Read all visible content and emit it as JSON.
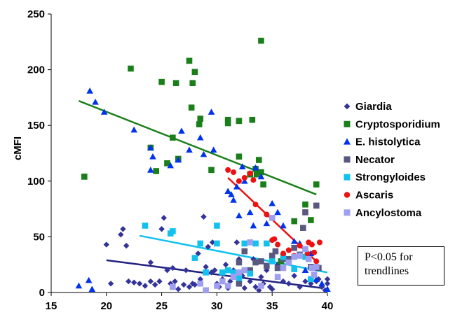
{
  "chart_data": {
    "type": "scatter",
    "title": "",
    "xlabel": "",
    "ylabel": "cMFI",
    "xlim": [
      15,
      40
    ],
    "ylim": [
      0,
      250
    ],
    "xticks": [
      15,
      20,
      25,
      30,
      35,
      40
    ],
    "yticks": [
      0,
      50,
      100,
      150,
      200,
      250
    ],
    "grid": false,
    "legend_position": "right",
    "series": [
      {
        "name": "Giardia",
        "marker": "diamond",
        "color": "#333399",
        "points": [
          [
            20,
            43
          ],
          [
            20.4,
            8
          ],
          [
            21.3,
            52
          ],
          [
            21.5,
            57
          ],
          [
            21.8,
            42
          ],
          [
            22,
            10
          ],
          [
            22.5,
            9
          ],
          [
            23,
            8
          ],
          [
            23.5,
            6
          ],
          [
            24,
            10
          ],
          [
            24,
            27
          ],
          [
            24.4,
            7
          ],
          [
            24.8,
            10
          ],
          [
            25,
            57
          ],
          [
            25.2,
            67
          ],
          [
            25.5,
            20
          ],
          [
            25.8,
            8
          ],
          [
            26,
            22
          ],
          [
            26.2,
            10
          ],
          [
            26.5,
            3
          ],
          [
            27,
            7
          ],
          [
            27.2,
            20
          ],
          [
            27.5,
            5
          ],
          [
            27.8,
            8
          ],
          [
            28,
            7
          ],
          [
            28.3,
            35
          ],
          [
            28.5,
            12
          ],
          [
            28.8,
            68
          ],
          [
            29,
            23
          ],
          [
            29.2,
            41
          ],
          [
            29.5,
            18
          ],
          [
            29.6,
            45
          ],
          [
            29.8,
            20
          ],
          [
            30,
            8
          ],
          [
            30.2,
            5
          ],
          [
            30.5,
            12
          ],
          [
            30.8,
            25
          ],
          [
            31,
            4
          ],
          [
            31.2,
            10
          ],
          [
            31.5,
            20
          ],
          [
            31.8,
            45
          ],
          [
            32,
            30
          ],
          [
            32,
            8
          ],
          [
            32.3,
            15
          ],
          [
            32.5,
            4
          ],
          [
            32.8,
            20
          ],
          [
            33,
            10
          ],
          [
            33.3,
            30
          ],
          [
            33.5,
            5
          ],
          [
            33.8,
            2
          ],
          [
            34,
            14
          ],
          [
            34.2,
            8
          ],
          [
            34.5,
            20
          ],
          [
            34.8,
            5
          ],
          [
            35,
            3
          ],
          [
            35.5,
            25
          ],
          [
            36,
            10
          ],
          [
            36.5,
            8
          ],
          [
            37,
            15
          ],
          [
            37.5,
            5
          ],
          [
            38,
            10
          ],
          [
            38.5,
            8
          ],
          [
            39,
            10
          ],
          [
            39.2,
            12
          ],
          [
            39.5,
            5
          ],
          [
            39.8,
            2
          ],
          [
            40,
            8
          ],
          [
            40,
            12
          ]
        ]
      },
      {
        "name": "Cryptosporidium",
        "marker": "square",
        "color": "#1a7f1a",
        "points": [
          [
            18,
            104
          ],
          [
            22.2,
            201
          ],
          [
            24,
            130
          ],
          [
            24.5,
            109
          ],
          [
            25,
            189
          ],
          [
            25.5,
            116
          ],
          [
            26,
            139
          ],
          [
            26.3,
            188
          ],
          [
            26.5,
            120
          ],
          [
            27.5,
            208
          ],
          [
            27.7,
            166
          ],
          [
            27.8,
            188
          ],
          [
            28,
            198
          ],
          [
            28.4,
            151
          ],
          [
            28.5,
            156
          ],
          [
            29.5,
            110
          ],
          [
            31,
            152
          ],
          [
            31,
            155
          ],
          [
            32,
            154
          ],
          [
            32,
            122
          ],
          [
            33,
            106
          ],
          [
            33.2,
            155
          ],
          [
            33.5,
            111
          ],
          [
            33.6,
            106
          ],
          [
            33.8,
            119
          ],
          [
            34,
            108
          ],
          [
            34,
            226
          ],
          [
            34.2,
            97
          ],
          [
            35.8,
            28
          ],
          [
            37,
            64
          ],
          [
            38,
            79
          ],
          [
            38.5,
            65
          ],
          [
            39,
            97
          ]
        ]
      },
      {
        "name": "E. histolytica",
        "marker": "triangle",
        "color": "#0033ee",
        "points": [
          [
            17.5,
            6
          ],
          [
            18.4,
            11
          ],
          [
            18.5,
            181
          ],
          [
            18.7,
            3
          ],
          [
            19,
            171
          ],
          [
            19.8,
            162
          ],
          [
            22.5,
            146
          ],
          [
            24,
            130
          ],
          [
            24,
            110
          ],
          [
            24.2,
            122
          ],
          [
            25.8,
            114
          ],
          [
            26.5,
            119
          ],
          [
            26.8,
            145
          ],
          [
            27.5,
            128
          ],
          [
            28.5,
            139
          ],
          [
            28.8,
            124
          ],
          [
            29.5,
            162
          ],
          [
            29.7,
            128
          ],
          [
            31,
            91
          ],
          [
            31.3,
            88
          ],
          [
            31.5,
            83
          ],
          [
            31.8,
            95
          ],
          [
            32,
            69
          ],
          [
            32.3,
            113
          ],
          [
            32.5,
            100
          ],
          [
            33,
            72
          ],
          [
            33.3,
            60
          ],
          [
            33.5,
            112
          ],
          [
            34,
            104
          ],
          [
            34.5,
            62
          ],
          [
            35,
            80
          ],
          [
            35.5,
            72
          ],
          [
            36,
            60
          ],
          [
            37,
            46
          ],
          [
            37.5,
            44
          ],
          [
            38,
            20
          ],
          [
            38.5,
            35
          ],
          [
            39,
            12
          ],
          [
            39.5,
            8
          ],
          [
            40,
            3
          ]
        ]
      },
      {
        "name": "Necator",
        "marker": "square",
        "color": "#585880",
        "points": [
          [
            32,
            27
          ],
          [
            32.5,
            37
          ],
          [
            33,
            20
          ],
          [
            33.5,
            27
          ],
          [
            34,
            28
          ],
          [
            34.5,
            24
          ],
          [
            35,
            33
          ],
          [
            35.3,
            37
          ],
          [
            35.5,
            22
          ],
          [
            36,
            30
          ],
          [
            36.5,
            30
          ],
          [
            37,
            40
          ],
          [
            37.5,
            34
          ],
          [
            37.8,
            58
          ],
          [
            38,
            72
          ],
          [
            38.5,
            23
          ],
          [
            39,
            78
          ],
          [
            39.2,
            22
          ],
          [
            32,
            8
          ]
        ]
      },
      {
        "name": "Strongyloides",
        "marker": "square",
        "color": "#11c1ee",
        "points": [
          [
            23.5,
            60
          ],
          [
            25.8,
            53
          ],
          [
            26,
            55
          ],
          [
            28,
            31
          ],
          [
            28.5,
            44
          ],
          [
            29,
            18
          ],
          [
            30,
            60
          ],
          [
            30,
            44
          ],
          [
            30.5,
            18
          ],
          [
            31,
            20
          ],
          [
            31.5,
            18
          ],
          [
            32,
            13
          ],
          [
            32.5,
            44
          ],
          [
            33,
            17
          ],
          [
            33.5,
            44
          ],
          [
            34.5,
            44
          ],
          [
            35,
            28
          ],
          [
            36,
            32
          ],
          [
            37,
            21
          ],
          [
            38,
            32
          ],
          [
            38.5,
            12
          ]
        ]
      },
      {
        "name": "Ascaris",
        "marker": "circle",
        "color": "#ee1111",
        "points": [
          [
            31,
            110
          ],
          [
            31.5,
            108
          ],
          [
            32,
            100
          ],
          [
            32.5,
            103
          ],
          [
            33,
            107
          ],
          [
            33.3,
            101
          ],
          [
            33.5,
            79
          ],
          [
            34.5,
            70
          ],
          [
            35,
            47
          ],
          [
            35.2,
            48
          ],
          [
            35.5,
            43
          ],
          [
            36,
            35
          ],
          [
            36.5,
            38
          ],
          [
            37,
            33
          ],
          [
            37.5,
            42
          ],
          [
            38,
            39
          ],
          [
            38.3,
            45
          ],
          [
            38.6,
            43
          ],
          [
            38.8,
            36
          ],
          [
            39,
            28
          ],
          [
            39.3,
            45
          ],
          [
            38.2,
            35
          ]
        ]
      },
      {
        "name": "Ancylostoma",
        "marker": "square",
        "color": "#9f9fef",
        "points": [
          [
            26,
            5
          ],
          [
            28.5,
            8
          ],
          [
            29,
            2
          ],
          [
            30,
            6
          ],
          [
            30.5,
            10
          ],
          [
            31,
            6
          ],
          [
            31.5,
            14
          ],
          [
            32,
            18
          ],
          [
            32.5,
            20
          ],
          [
            33,
            45
          ],
          [
            34,
            6
          ],
          [
            35,
            67
          ],
          [
            35.5,
            14
          ],
          [
            36,
            22
          ],
          [
            36.5,
            27
          ],
          [
            37,
            32
          ],
          [
            37.5,
            33
          ],
          [
            38,
            39
          ],
          [
            38.3,
            30
          ],
          [
            38.6,
            22
          ],
          [
            38.8,
            16
          ],
          [
            39,
            23
          ]
        ]
      }
    ],
    "trendlines": [
      {
        "series": "Giardia",
        "color": "#22227f",
        "from": [
          20,
          29
        ],
        "to": [
          39.5,
          4
        ]
      },
      {
        "series": "Cryptosporidium",
        "color": "#1a801a",
        "from": [
          17.5,
          172
        ],
        "to": [
          39,
          88
        ]
      },
      {
        "series": "Strongyloides",
        "color": "#11c1ee",
        "from": [
          23,
          51
        ],
        "to": [
          40,
          18
        ]
      },
      {
        "series": "Ascaris",
        "color": "#ee1111",
        "from": [
          31,
          103
        ],
        "to": [
          39,
          28
        ]
      }
    ],
    "annotation": {
      "lines": [
        "P<0.05 for",
        "trendlines"
      ]
    }
  }
}
